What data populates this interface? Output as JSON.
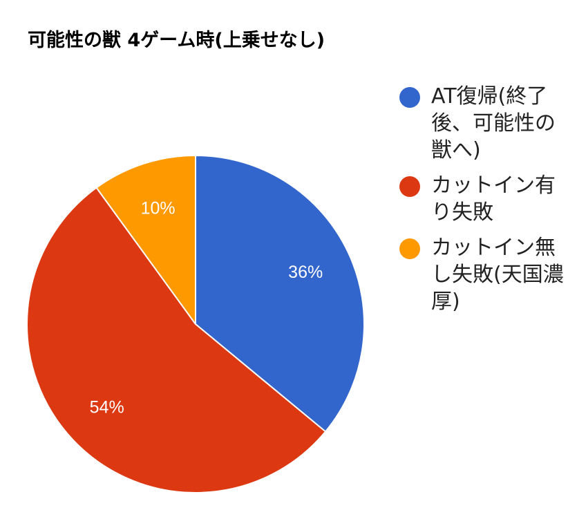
{
  "chart_data": {
    "type": "pie",
    "title": "可能性の獣 4ゲーム時(上乗せなし)",
    "legend_position": "right",
    "slices": [
      {
        "label": "AT復帰(終了後、可能性の獣へ)",
        "value": 36,
        "display": "36%",
        "color": "#3366cc"
      },
      {
        "label": "カットイン有り失敗",
        "value": 54,
        "display": "54%",
        "color": "#dc3912"
      },
      {
        "label": "カットイン無し失敗(天国濃厚)",
        "value": 10,
        "display": "10%",
        "color": "#ff9900"
      }
    ]
  }
}
